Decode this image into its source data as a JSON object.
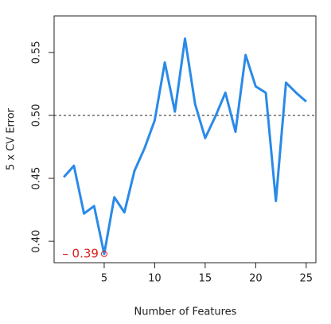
{
  "chart_data": {
    "type": "line",
    "x_label": "Number of Features",
    "y_label": "5 x CV Error",
    "x": [
      1,
      2,
      3,
      4,
      5,
      6,
      7,
      8,
      9,
      10,
      11,
      12,
      13,
      14,
      15,
      16,
      17,
      18,
      19,
      20,
      21,
      22,
      23,
      24,
      25
    ],
    "series": [
      {
        "color": "#2a8ae8",
        "values": [
          0.451,
          0.46,
          0.422,
          0.428,
          0.39,
          0.435,
          0.423,
          0.456,
          0.474,
          0.496,
          0.542,
          0.503,
          0.561,
          0.509,
          0.482,
          0.499,
          0.518,
          0.487,
          0.548,
          0.523,
          0.518,
          0.432,
          0.526,
          0.518,
          0.511
        ]
      }
    ],
    "xlim": [
      0.04,
      25.96
    ],
    "ylim": [
      0.383,
      0.579
    ],
    "xticks": [
      5,
      10,
      15,
      20,
      25
    ],
    "yticks": [
      {
        "value": 0.4,
        "label": "0.40"
      },
      {
        "value": 0.45,
        "label": "0.45"
      },
      {
        "value": 0.5,
        "label": "0.50"
      },
      {
        "value": 0.55,
        "label": "0.55"
      }
    ],
    "hline": 0.5,
    "annotations": [
      {
        "text": "– 0.39",
        "x": 5,
        "y": 0.39,
        "color": "#e02020"
      }
    ]
  }
}
